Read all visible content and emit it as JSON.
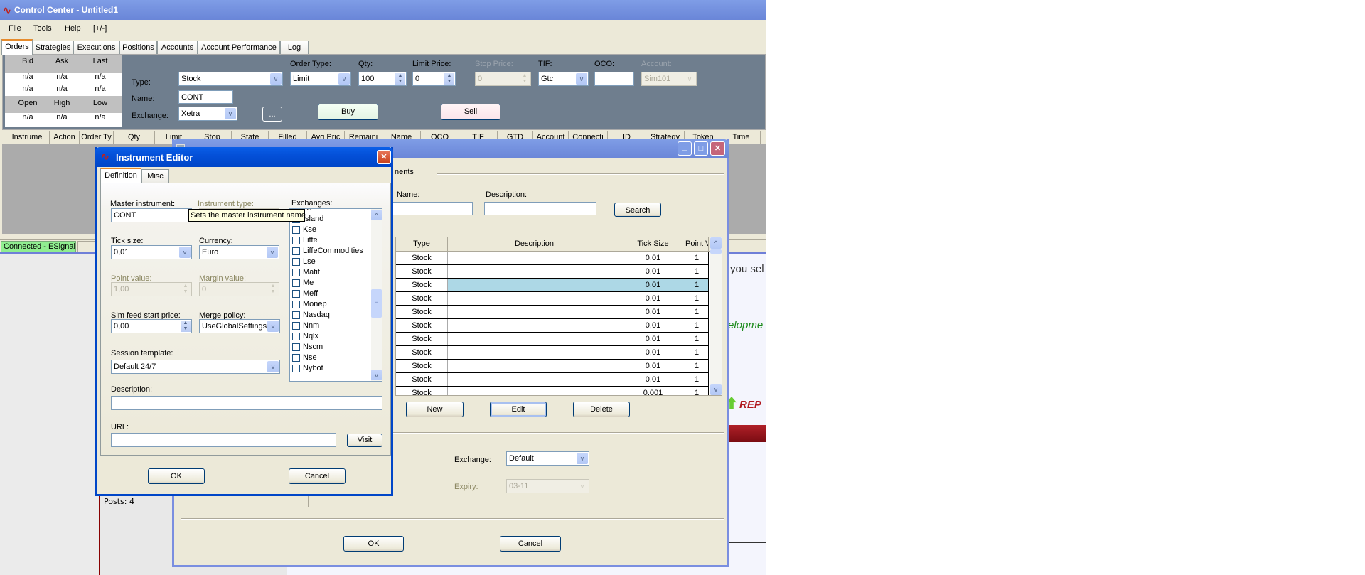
{
  "main": {
    "title": "Control Center - Untitled1",
    "menu": [
      "File",
      "Tools",
      "Help",
      "[+/-]"
    ],
    "tabs": [
      "Orders",
      "Strategies",
      "Executions",
      "Positions",
      "Accounts",
      "Account Performance",
      "Log"
    ],
    "quote": {
      "row1": [
        "Bid",
        "Ask",
        "Last"
      ],
      "v1": [
        "n/a",
        "n/a",
        "n/a"
      ],
      "v2": [
        "n/a",
        "n/a",
        "n/a"
      ],
      "row2": [
        "Open",
        "High",
        "Low"
      ],
      "v3": [
        "n/a",
        "n/a",
        "n/a"
      ]
    },
    "order": {
      "type_label": "Type:",
      "type": "Stock",
      "name_label": "Name:",
      "name": "CONT",
      "exchange_label": "Exchange:",
      "exchange": "Xetra",
      "browse": "...",
      "order_type_label": "Order Type:",
      "order_type": "Limit",
      "qty_label": "Qty:",
      "qty": "100",
      "limit_label": "Limit Price:",
      "limit": "0",
      "stop_label": "Stop Price:",
      "stop": "0",
      "tif_label": "TIF:",
      "tif": "Gtc",
      "oco_label": "OCO:",
      "oco": "",
      "account_label": "Account:",
      "account": "Sim101",
      "buy": "Buy",
      "sell": "Sell"
    },
    "grid_columns": [
      "Instrume",
      "Action",
      "Order Ty",
      "Qty",
      "Limit",
      "Stop",
      "State",
      "Filled",
      "Avg Pric",
      "Remaini",
      "Name",
      "OCO",
      "TIF",
      "GTD",
      "Account",
      "Connecti",
      "ID",
      "Strategy",
      "Token",
      "Time"
    ],
    "status": "Connected - ESignal"
  },
  "manager": {
    "group": "nents",
    "name_label": "Name:",
    "desc_label": "Description:",
    "search": "Search",
    "columns": [
      "Type",
      "Description",
      "Tick Size",
      "Point Val."
    ],
    "rows": [
      [
        "Stock",
        "",
        "0,01",
        "1"
      ],
      [
        "Stock",
        "",
        "0,01",
        "1"
      ],
      [
        "Stock",
        "",
        "0,01",
        "1"
      ],
      [
        "Stock",
        "",
        "0,01",
        "1"
      ],
      [
        "Stock",
        "",
        "0,01",
        "1"
      ],
      [
        "Stock",
        "",
        "0,01",
        "1"
      ],
      [
        "Stock",
        "",
        "0,01",
        "1"
      ],
      [
        "Stock",
        "",
        "0,01",
        "1"
      ],
      [
        "Stock",
        "",
        "0,01",
        "1"
      ],
      [
        "Stock",
        "",
        "0,01",
        "1"
      ],
      [
        "Stock",
        "",
        "0,001",
        "1"
      ]
    ],
    "selected_row": 2,
    "new": "New",
    "edit": "Edit",
    "delete": "Delete",
    "exchange_label": "Exchange:",
    "exchange": "Default",
    "expiry_label": "Expiry:",
    "expiry": "03-11",
    "ok": "OK",
    "cancel": "Cancel"
  },
  "editor": {
    "title": "Instrument Editor",
    "tabs": [
      "Definition",
      "Misc"
    ],
    "master_label": "Master instrument:",
    "master": "CONT",
    "type_label": "Instrument type:",
    "tooltip": "Sets the master instrument name",
    "tick_label": "Tick size:",
    "tick": "0,01",
    "currency_label": "Currency:",
    "currency": "Euro",
    "point_label": "Point value:",
    "point": "1,00",
    "margin_label": "Margin value:",
    "margin": "0",
    "sim_label": "Sim feed start price:",
    "sim": "0,00",
    "merge_label": "Merge policy:",
    "merge": "UseGlobalSettings",
    "session_label": "Session template:",
    "session": "Default 24/7",
    "desc_label": "Description:",
    "desc": "",
    "url_label": "URL:",
    "url": "",
    "visit": "Visit",
    "exchanges_label": "Exchanges:",
    "exchanges": [
      "se",
      "Island",
      "Kse",
      "Liffe",
      "LiffeCommodities",
      "Lse",
      "Matif",
      "Me",
      "Meff",
      "Monep",
      "Nasdaq",
      "Nnm",
      "Nqlx",
      "Nscm",
      "Nse",
      "Nybot"
    ],
    "ok": "OK",
    "cancel": "Cancel"
  },
  "web": {
    "text1": "you sel",
    "text2": "elopme",
    "logo": "REP",
    "posts": "Posts: 4"
  },
  "colors": {
    "panel": "#6f7e8e",
    "dialog": "#ece9d8",
    "selected": "#add8e6",
    "banner": "#9a1a20"
  }
}
